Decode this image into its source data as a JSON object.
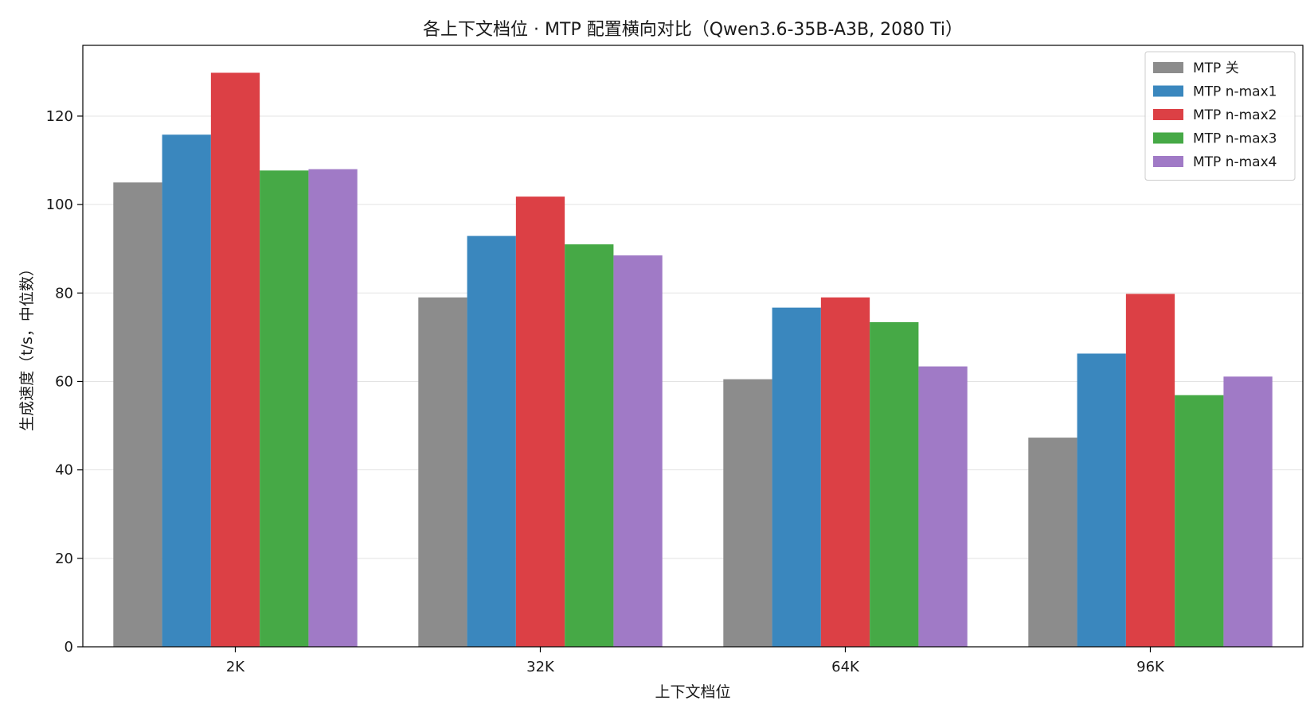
{
  "chart_data": {
    "type": "bar",
    "title": "各上下文档位 · MTP 配置横向对比（Qwen3.6-35B-A3B, 2080 Ti）",
    "xlabel": "上下文档位",
    "ylabel": "生成速度（t/s，中位数）",
    "categories": [
      "2K",
      "32K",
      "64K",
      "96K"
    ],
    "ylim": [
      0,
      136
    ],
    "yticks": [
      0,
      20,
      40,
      60,
      80,
      100,
      120
    ],
    "grid": "horizontal",
    "legend_position": "top-right",
    "series": [
      {
        "name": "MTP 关",
        "color": "#8c8c8c",
        "values": [
          105,
          79,
          60.5,
          47.3
        ]
      },
      {
        "name": "MTP n-max1",
        "color": "#3a87be",
        "values": [
          115.8,
          92.9,
          76.7,
          66.3
        ]
      },
      {
        "name": "MTP n-max2",
        "color": "#dc4045",
        "values": [
          129.8,
          101.8,
          79.0,
          79.8
        ]
      },
      {
        "name": "MTP n-max3",
        "color": "#46a946",
        "values": [
          107.7,
          91.0,
          73.4,
          56.9
        ]
      },
      {
        "name": "MTP n-max4",
        "color": "#a07ac6",
        "values": [
          108.0,
          88.5,
          63.4,
          61.1
        ]
      }
    ]
  }
}
